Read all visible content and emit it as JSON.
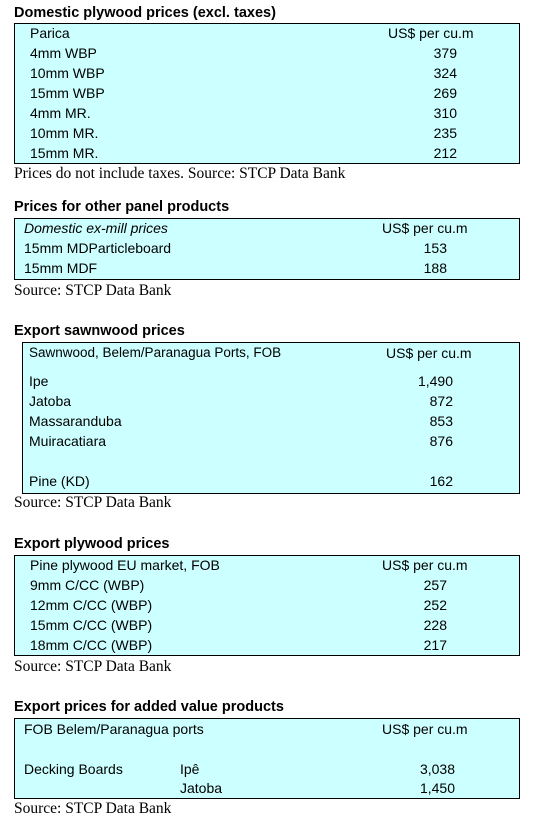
{
  "sections": [
    {
      "title": "Domestic plywood prices (excl. taxes)",
      "header": {
        "label": "Parica",
        "unit": "US$ per cu.m"
      },
      "rows": [
        {
          "label": "4mm WBP",
          "value": "379"
        },
        {
          "label": "10mm WBP",
          "value": "324"
        },
        {
          "label": "15mm WBP",
          "value": "269"
        },
        {
          "label": "4mm MR.",
          "value": "310"
        },
        {
          "label": "10mm MR.",
          "value": "235"
        },
        {
          "label": "15mm MR.",
          "value": "212"
        }
      ],
      "source": "Prices do not include taxes. Source: STCP Data Bank"
    },
    {
      "title": "Prices for other panel products",
      "header": {
        "label": "Domestic ex-mill prices",
        "unit": "US$ per cu.m"
      },
      "rows": [
        {
          "label": "15mm MDParticleboard",
          "value": "153"
        },
        {
          "label": "15mm MDF",
          "value": "188"
        }
      ],
      "source": "Source: STCP Data Bank"
    },
    {
      "title": "Export sawnwood prices",
      "header": {
        "label": "Sawnwood, Belem/Paranagua Ports, FOB",
        "unit": "US$ per cu.m"
      },
      "rows": [
        {
          "label": "Ipe",
          "value": "1,490"
        },
        {
          "label": "Jatoba",
          "value": "872"
        },
        {
          "label": "Massaranduba",
          "value": "853"
        },
        {
          "label": "Muiracatiara",
          "value": "876"
        },
        {
          "label": "Pine (KD)",
          "value": "162"
        }
      ],
      "source": "Source: STCP Data Bank"
    },
    {
      "title": "Export plywood prices",
      "header": {
        "label": "Pine plywood EU market, FOB",
        "unit": "US$ per cu.m"
      },
      "rows": [
        {
          "label": "9mm C/CC (WBP)",
          "value": "257"
        },
        {
          "label": "12mm C/CC (WBP)",
          "value": "252"
        },
        {
          "label": "15mm C/CC (WBP)",
          "value": "228"
        },
        {
          "label": "18mm C/CC (WBP)",
          "value": "217"
        }
      ],
      "source": "Source: STCP Data Bank"
    },
    {
      "title": "Export prices for added value products",
      "header": {
        "label": "FOB Belem/Paranagua ports",
        "unit": "US$ per cu.m"
      },
      "group_label": "Decking Boards",
      "rows": [
        {
          "label": "Ipê",
          "value": "3,038"
        },
        {
          "label": "Jatoba",
          "value": "1,450"
        }
      ],
      "source": "Source: STCP Data Bank"
    }
  ]
}
